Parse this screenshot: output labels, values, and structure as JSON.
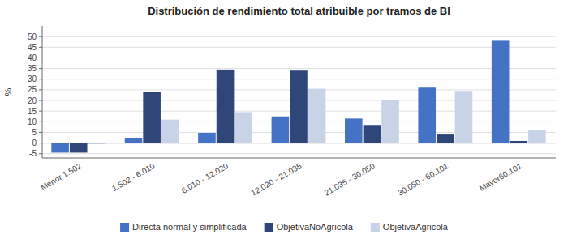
{
  "chart_data": {
    "type": "bar",
    "title": "Distribución de rendimiento total atribuible por tramos de BI",
    "categories": [
      "Menor 1.502",
      "1.502 - 6.010",
      "6.010 - 12.020",
      "12.020 - 21.035",
      "21.035 - 30.050",
      "30.050 - 60.101",
      "Mayor60.101"
    ],
    "series": [
      {
        "name": "Directa normal y simplificada",
        "color": "#4472C4",
        "values": [
          -4.5,
          2.5,
          4.8,
          12.5,
          11.5,
          26.0,
          48.0
        ]
      },
      {
        "name": "ObjetivaNoAgricola",
        "color": "#2F4778",
        "values": [
          -4.5,
          24.0,
          34.5,
          34.0,
          8.5,
          4.0,
          1.0
        ]
      },
      {
        "name": "ObjetivaAgricola",
        "color": "#C9D3E8",
        "values": [
          -0.5,
          11.0,
          14.5,
          25.5,
          20.0,
          24.5,
          6.0
        ]
      }
    ],
    "ylabel": "%",
    "ylim": [
      -7,
      55
    ],
    "yticks": [
      -5,
      0,
      5,
      10,
      15,
      20,
      25,
      30,
      35,
      40,
      45,
      50
    ],
    "grid": true,
    "legend": "bottom"
  }
}
